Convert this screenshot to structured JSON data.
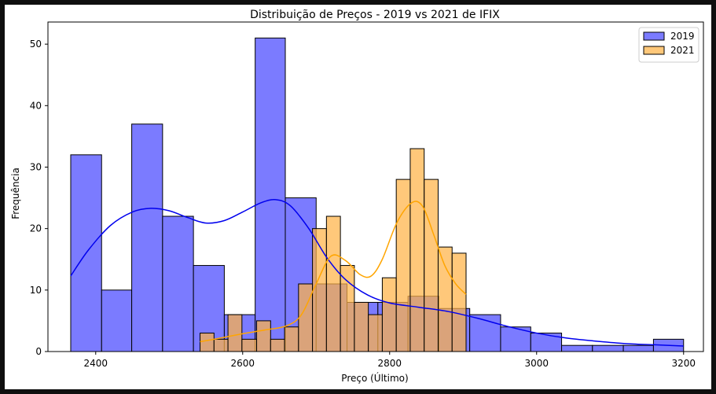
{
  "chart_data": {
    "type": "bar",
    "title": "Distribuição de Preços - 2019 vs 2021 de IFIX",
    "xlabel": "Preço (Último)",
    "ylabel": "Frequência",
    "xlim": [
      2335,
      3227
    ],
    "ylim": [
      0,
      53.6
    ],
    "xticks": [
      2400,
      2600,
      2800,
      3000,
      3200
    ],
    "yticks": [
      0,
      10,
      20,
      30,
      40,
      50
    ],
    "legend_position": "top-right",
    "grid": false,
    "series": [
      {
        "name": "2019",
        "color": "#7b7bff",
        "line_color": "#0000ee",
        "bins": [
          {
            "x0": 2366,
            "x1": 2408,
            "count": 32
          },
          {
            "x0": 2408,
            "x1": 2449,
            "count": 10
          },
          {
            "x0": 2449,
            "x1": 2491,
            "count": 37
          },
          {
            "x0": 2491,
            "x1": 2533,
            "count": 22
          },
          {
            "x0": 2533,
            "x1": 2575,
            "count": 14
          },
          {
            "x0": 2575,
            "x1": 2617,
            "count": 6
          },
          {
            "x0": 2617,
            "x1": 2658,
            "count": 51
          },
          {
            "x0": 2658,
            "x1": 2700,
            "count": 25
          },
          {
            "x0": 2700,
            "x1": 2742,
            "count": 11
          },
          {
            "x0": 2742,
            "x1": 2784,
            "count": 8
          },
          {
            "x0": 2784,
            "x1": 2825,
            "count": 8
          },
          {
            "x0": 2825,
            "x1": 2867,
            "count": 9
          },
          {
            "x0": 2867,
            "x1": 2909,
            "count": 7
          },
          {
            "x0": 2909,
            "x1": 2951,
            "count": 6
          },
          {
            "x0": 2951,
            "x1": 2992,
            "count": 4
          },
          {
            "x0": 2992,
            "x1": 3034,
            "count": 3
          },
          {
            "x0": 3034,
            "x1": 3076,
            "count": 1
          },
          {
            "x0": 3076,
            "x1": 3118,
            "count": 1
          },
          {
            "x0": 3118,
            "x1": 3159,
            "count": 1
          },
          {
            "x0": 3159,
            "x1": 3200,
            "count": 2
          }
        ],
        "kde": [
          [
            2366,
            12.3
          ],
          [
            2390,
            16.5
          ],
          [
            2420,
            20.5
          ],
          [
            2450,
            22.7
          ],
          [
            2475,
            23.3
          ],
          [
            2500,
            22.9
          ],
          [
            2525,
            21.8
          ],
          [
            2550,
            20.9
          ],
          [
            2575,
            21.3
          ],
          [
            2600,
            22.7
          ],
          [
            2625,
            24.2
          ],
          [
            2645,
            24.7
          ],
          [
            2665,
            23.7
          ],
          [
            2690,
            20
          ],
          [
            2715,
            15.2
          ],
          [
            2740,
            11.7
          ],
          [
            2770,
            9.2
          ],
          [
            2800,
            7.9
          ],
          [
            2840,
            7.2
          ],
          [
            2880,
            6.5
          ],
          [
            2920,
            5.4
          ],
          [
            2960,
            4.1
          ],
          [
            3000,
            3
          ],
          [
            3040,
            2.2
          ],
          [
            3080,
            1.7
          ],
          [
            3120,
            1.3
          ],
          [
            3160,
            1.1
          ],
          [
            3200,
            0.9
          ]
        ]
      },
      {
        "name": "2021",
        "color": "#ffb347",
        "line_color": "#ffa500",
        "bins": [
          {
            "x0": 2542,
            "x1": 2561,
            "count": 3
          },
          {
            "x0": 2561,
            "x1": 2580,
            "count": 2
          },
          {
            "x0": 2580,
            "x1": 2599,
            "count": 6
          },
          {
            "x0": 2599,
            "x1": 2619,
            "count": 2
          },
          {
            "x0": 2619,
            "x1": 2638,
            "count": 5
          },
          {
            "x0": 2638,
            "x1": 2657,
            "count": 2
          },
          {
            "x0": 2657,
            "x1": 2676,
            "count": 4
          },
          {
            "x0": 2676,
            "x1": 2695,
            "count": 11
          },
          {
            "x0": 2695,
            "x1": 2714,
            "count": 20
          },
          {
            "x0": 2714,
            "x1": 2733,
            "count": 22
          },
          {
            "x0": 2733,
            "x1": 2752,
            "count": 14
          },
          {
            "x0": 2752,
            "x1": 2771,
            "count": 8
          },
          {
            "x0": 2771,
            "x1": 2790,
            "count": 6
          },
          {
            "x0": 2790,
            "x1": 2809,
            "count": 12
          },
          {
            "x0": 2809,
            "x1": 2828,
            "count": 28
          },
          {
            "x0": 2828,
            "x1": 2847,
            "count": 33
          },
          {
            "x0": 2847,
            "x1": 2866,
            "count": 28
          },
          {
            "x0": 2866,
            "x1": 2885,
            "count": 17
          },
          {
            "x0": 2885,
            "x1": 2904,
            "count": 16
          }
        ],
        "kde": [
          [
            2542,
            1.6
          ],
          [
            2570,
            2.2
          ],
          [
            2600,
            2.9
          ],
          [
            2630,
            3.5
          ],
          [
            2660,
            4.2
          ],
          [
            2680,
            6
          ],
          [
            2700,
            11
          ],
          [
            2720,
            15.5
          ],
          [
            2740,
            14.8
          ],
          [
            2760,
            12.5
          ],
          [
            2775,
            12.3
          ],
          [
            2790,
            15
          ],
          [
            2810,
            21
          ],
          [
            2830,
            24.2
          ],
          [
            2845,
            23.6
          ],
          [
            2860,
            19
          ],
          [
            2875,
            14
          ],
          [
            2890,
            11
          ],
          [
            2904,
            9.3
          ]
        ]
      }
    ]
  }
}
